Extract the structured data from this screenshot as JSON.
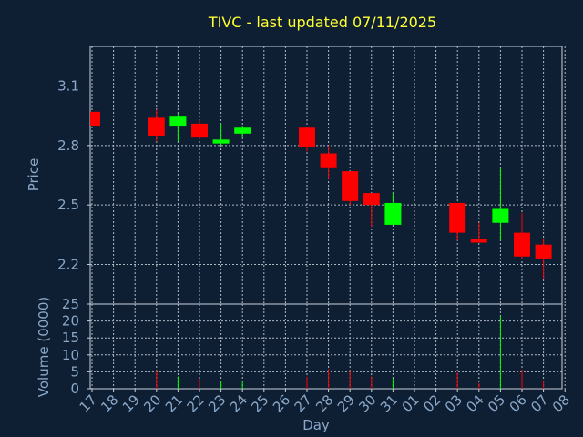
{
  "chart_data": [
    {
      "type": "candlestick",
      "title": "TIVC - last updated 07/11/2025",
      "ylabel": "Price",
      "ylim": [
        2.0,
        3.3
      ],
      "yticks": [
        2.2,
        2.5,
        2.8,
        3.1
      ],
      "ytick_labels": [
        "2.2",
        "2.5",
        "2.8",
        "3.1"
      ],
      "grid": true,
      "up_color": "#00ff00",
      "down_color": "#ff0000",
      "categories": [
        "17",
        "18",
        "19",
        "20",
        "21",
        "22",
        "23",
        "24",
        "25",
        "26",
        "27",
        "28",
        "29",
        "30",
        "31",
        "01",
        "02",
        "03",
        "04",
        "05",
        "06",
        "07",
        "08"
      ],
      "candles": [
        {
          "x": "17",
          "open": 2.97,
          "high": 2.97,
          "low": 2.9,
          "close": 2.9
        },
        {
          "x": "20",
          "open": 2.94,
          "high": 2.98,
          "low": 2.82,
          "close": 2.85
        },
        {
          "x": "21",
          "open": 2.9,
          "high": 2.96,
          "low": 2.82,
          "close": 2.95
        },
        {
          "x": "22",
          "open": 2.91,
          "high": 2.93,
          "low": 2.83,
          "close": 2.84
        },
        {
          "x": "23",
          "open": 2.81,
          "high": 2.91,
          "low": 2.8,
          "close": 2.83
        },
        {
          "x": "24",
          "open": 2.86,
          "high": 2.9,
          "low": 2.84,
          "close": 2.89
        },
        {
          "x": "27",
          "open": 2.89,
          "high": 2.89,
          "low": 2.77,
          "close": 2.79
        },
        {
          "x": "28",
          "open": 2.76,
          "high": 2.8,
          "low": 2.63,
          "close": 2.69
        },
        {
          "x": "29",
          "open": 2.67,
          "high": 2.67,
          "low": 2.5,
          "close": 2.52
        },
        {
          "x": "30",
          "open": 2.56,
          "high": 2.56,
          "low": 2.39,
          "close": 2.5
        },
        {
          "x": "31",
          "open": 2.4,
          "high": 2.56,
          "low": 2.4,
          "close": 2.51
        },
        {
          "x": "03",
          "open": 2.51,
          "high": 2.51,
          "low": 2.32,
          "close": 2.36
        },
        {
          "x": "04",
          "open": 2.33,
          "high": 2.41,
          "low": 2.31,
          "close": 2.31
        },
        {
          "x": "05",
          "open": 2.41,
          "high": 2.69,
          "low": 2.32,
          "close": 2.48
        },
        {
          "x": "06",
          "open": 2.36,
          "high": 2.46,
          "low": 2.23,
          "close": 2.24
        },
        {
          "x": "07",
          "open": 2.3,
          "high": 2.33,
          "low": 2.13,
          "close": 2.23
        }
      ]
    },
    {
      "type": "bar",
      "ylabel": "Volume (0000)",
      "xlabel": "Day",
      "ylim": [
        0,
        25
      ],
      "yticks": [
        0,
        5,
        10,
        15,
        20,
        25
      ],
      "ytick_labels": [
        "0",
        "5",
        "10",
        "15",
        "20",
        "25"
      ],
      "grid": true,
      "categories": [
        "17",
        "18",
        "19",
        "20",
        "21",
        "22",
        "23",
        "24",
        "25",
        "26",
        "27",
        "28",
        "29",
        "30",
        "31",
        "01",
        "02",
        "03",
        "04",
        "05",
        "06",
        "07",
        "08"
      ],
      "bars": [
        {
          "x": "20",
          "value": 5.5,
          "direction": "down"
        },
        {
          "x": "21",
          "value": 3.6,
          "direction": "up"
        },
        {
          "x": "22",
          "value": 3.0,
          "direction": "down"
        },
        {
          "x": "23",
          "value": 2.4,
          "direction": "up"
        },
        {
          "x": "24",
          "value": 2.4,
          "direction": "up"
        },
        {
          "x": "27",
          "value": 3.5,
          "direction": "down"
        },
        {
          "x": "28",
          "value": 5.8,
          "direction": "down"
        },
        {
          "x": "29",
          "value": 5.5,
          "direction": "down"
        },
        {
          "x": "30",
          "value": 3.6,
          "direction": "down"
        },
        {
          "x": "31",
          "value": 3.0,
          "direction": "up"
        },
        {
          "x": "03",
          "value": 4.8,
          "direction": "down"
        },
        {
          "x": "04",
          "value": 1.6,
          "direction": "down"
        },
        {
          "x": "05",
          "value": 21.5,
          "direction": "up"
        },
        {
          "x": "06",
          "value": 5.6,
          "direction": "down"
        },
        {
          "x": "07",
          "value": 2.2,
          "direction": "down"
        }
      ]
    }
  ]
}
